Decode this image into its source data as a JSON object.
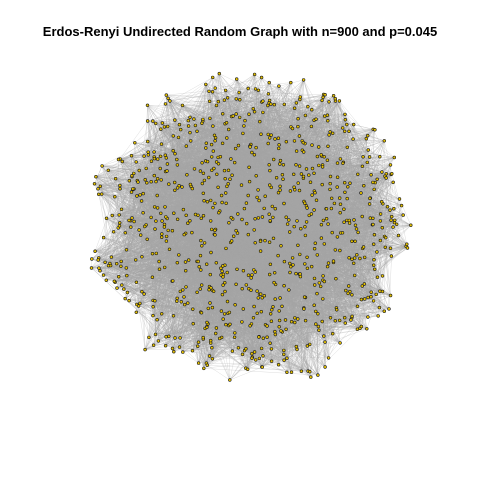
{
  "title": "Erdos-Renyi Undirected Random Graph with n=900 and p=0.045",
  "graph": {
    "model": "Erdos-Renyi",
    "directed": false,
    "n": 900,
    "p": 0.045,
    "layout": "circular blob (force-directed)"
  },
  "colors": {
    "background": "#ffffff",
    "edge": "#a6a6a6",
    "node_fill": "#e6c200",
    "node_border": "#1a1a1a",
    "title": "#000000"
  }
}
